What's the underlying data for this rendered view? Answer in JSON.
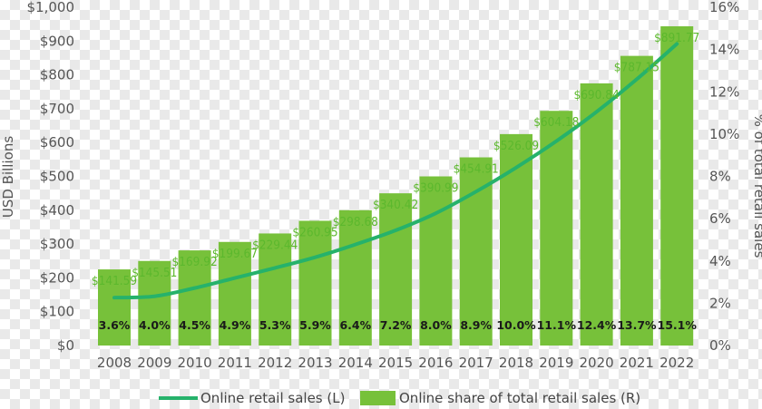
{
  "chart_data": {
    "type": "bar",
    "categories": [
      "2008",
      "2009",
      "2010",
      "2011",
      "2012",
      "2013",
      "2014",
      "2015",
      "2016",
      "2017",
      "2018",
      "2019",
      "2020",
      "2021",
      "2022"
    ],
    "series": [
      {
        "name": "Online retail sales (L)",
        "type": "line",
        "axis": "left",
        "values": [
          141.59,
          145.51,
          169.92,
          199.67,
          229.44,
          260.95,
          298.68,
          340.42,
          390.99,
          454.91,
          526.09,
          604.18,
          690.84,
          787.15,
          891.77
        ],
        "labels": [
          "$141.59",
          "$145.51",
          "$169.92",
          "$199.67",
          "$229.44",
          "$260.95",
          "$298.68",
          "$340.42",
          "$390.99",
          "$454.91",
          "$526.09",
          "$604.18",
          "$690.84",
          "$787.15",
          "$891.77"
        ]
      },
      {
        "name": "Online share of total retail sales (R)",
        "type": "bar",
        "axis": "right",
        "values": [
          3.6,
          4.0,
          4.5,
          4.9,
          5.3,
          5.9,
          6.4,
          7.2,
          8.0,
          8.9,
          10.0,
          11.1,
          12.4,
          13.7,
          15.1
        ],
        "labels": [
          "3.6%",
          "4.0%",
          "4.5%",
          "4.9%",
          "5.3%",
          "5.9%",
          "6.4%",
          "7.2%",
          "8.0%",
          "8.9%",
          "10.0%",
          "11.1%",
          "12.4%",
          "13.7%",
          "15.1%"
        ]
      }
    ],
    "ylabel": "USD Billions",
    "y2label": "% of total retail sales",
    "ylim": [
      0,
      1000
    ],
    "y2lim": [
      0,
      16
    ],
    "yticks": [
      "$0",
      "$100",
      "$200",
      "$300",
      "$400",
      "$500",
      "$600",
      "$700",
      "$800",
      "$900",
      "$1,000"
    ],
    "y2ticks": [
      "0%",
      "2%",
      "4%",
      "6%",
      "8%",
      "10%",
      "12%",
      "14%",
      "16%"
    ],
    "grid": false,
    "legend": "bottom",
    "colors": {
      "line": "#26b26b",
      "bar": "#77c13a",
      "bar_label": "#1a1a1a",
      "line_label": "#5cb82d"
    }
  }
}
